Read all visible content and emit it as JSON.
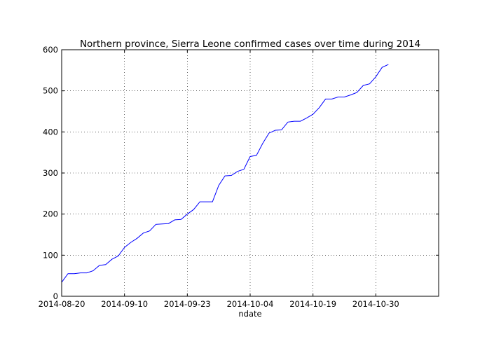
{
  "chart_data": {
    "type": "line",
    "title": "Northern province, Sierra Leone confirmed cases over time during 2014",
    "xlabel": "ndate",
    "ylabel": "",
    "ylim": [
      0,
      600
    ],
    "yticks": [
      0,
      100,
      200,
      300,
      400,
      500,
      600
    ],
    "xtick_labels": [
      "2014-08-20",
      "2014-09-10",
      "2014-09-23",
      "2014-10-04",
      "2014-10-19",
      "2014-10-30"
    ],
    "xtick_index": [
      0,
      10,
      20,
      30,
      40,
      50
    ],
    "xlim_index": [
      0,
      60
    ],
    "grid": true,
    "line_color": "#0000ff",
    "series": [
      {
        "name": "confirmed cases",
        "values": [
          34,
          55,
          55,
          57,
          57,
          62,
          75,
          77,
          90,
          98,
          119,
          131,
          141,
          154,
          159,
          175,
          176,
          177,
          186,
          187,
          200,
          211,
          230,
          230,
          230,
          270,
          293,
          294,
          304,
          309,
          340,
          343,
          372,
          397,
          404,
          405,
          424,
          426,
          426,
          434,
          443,
          459,
          480,
          480,
          485,
          485,
          490,
          496,
          513,
          517,
          534,
          557,
          564
        ]
      }
    ]
  }
}
